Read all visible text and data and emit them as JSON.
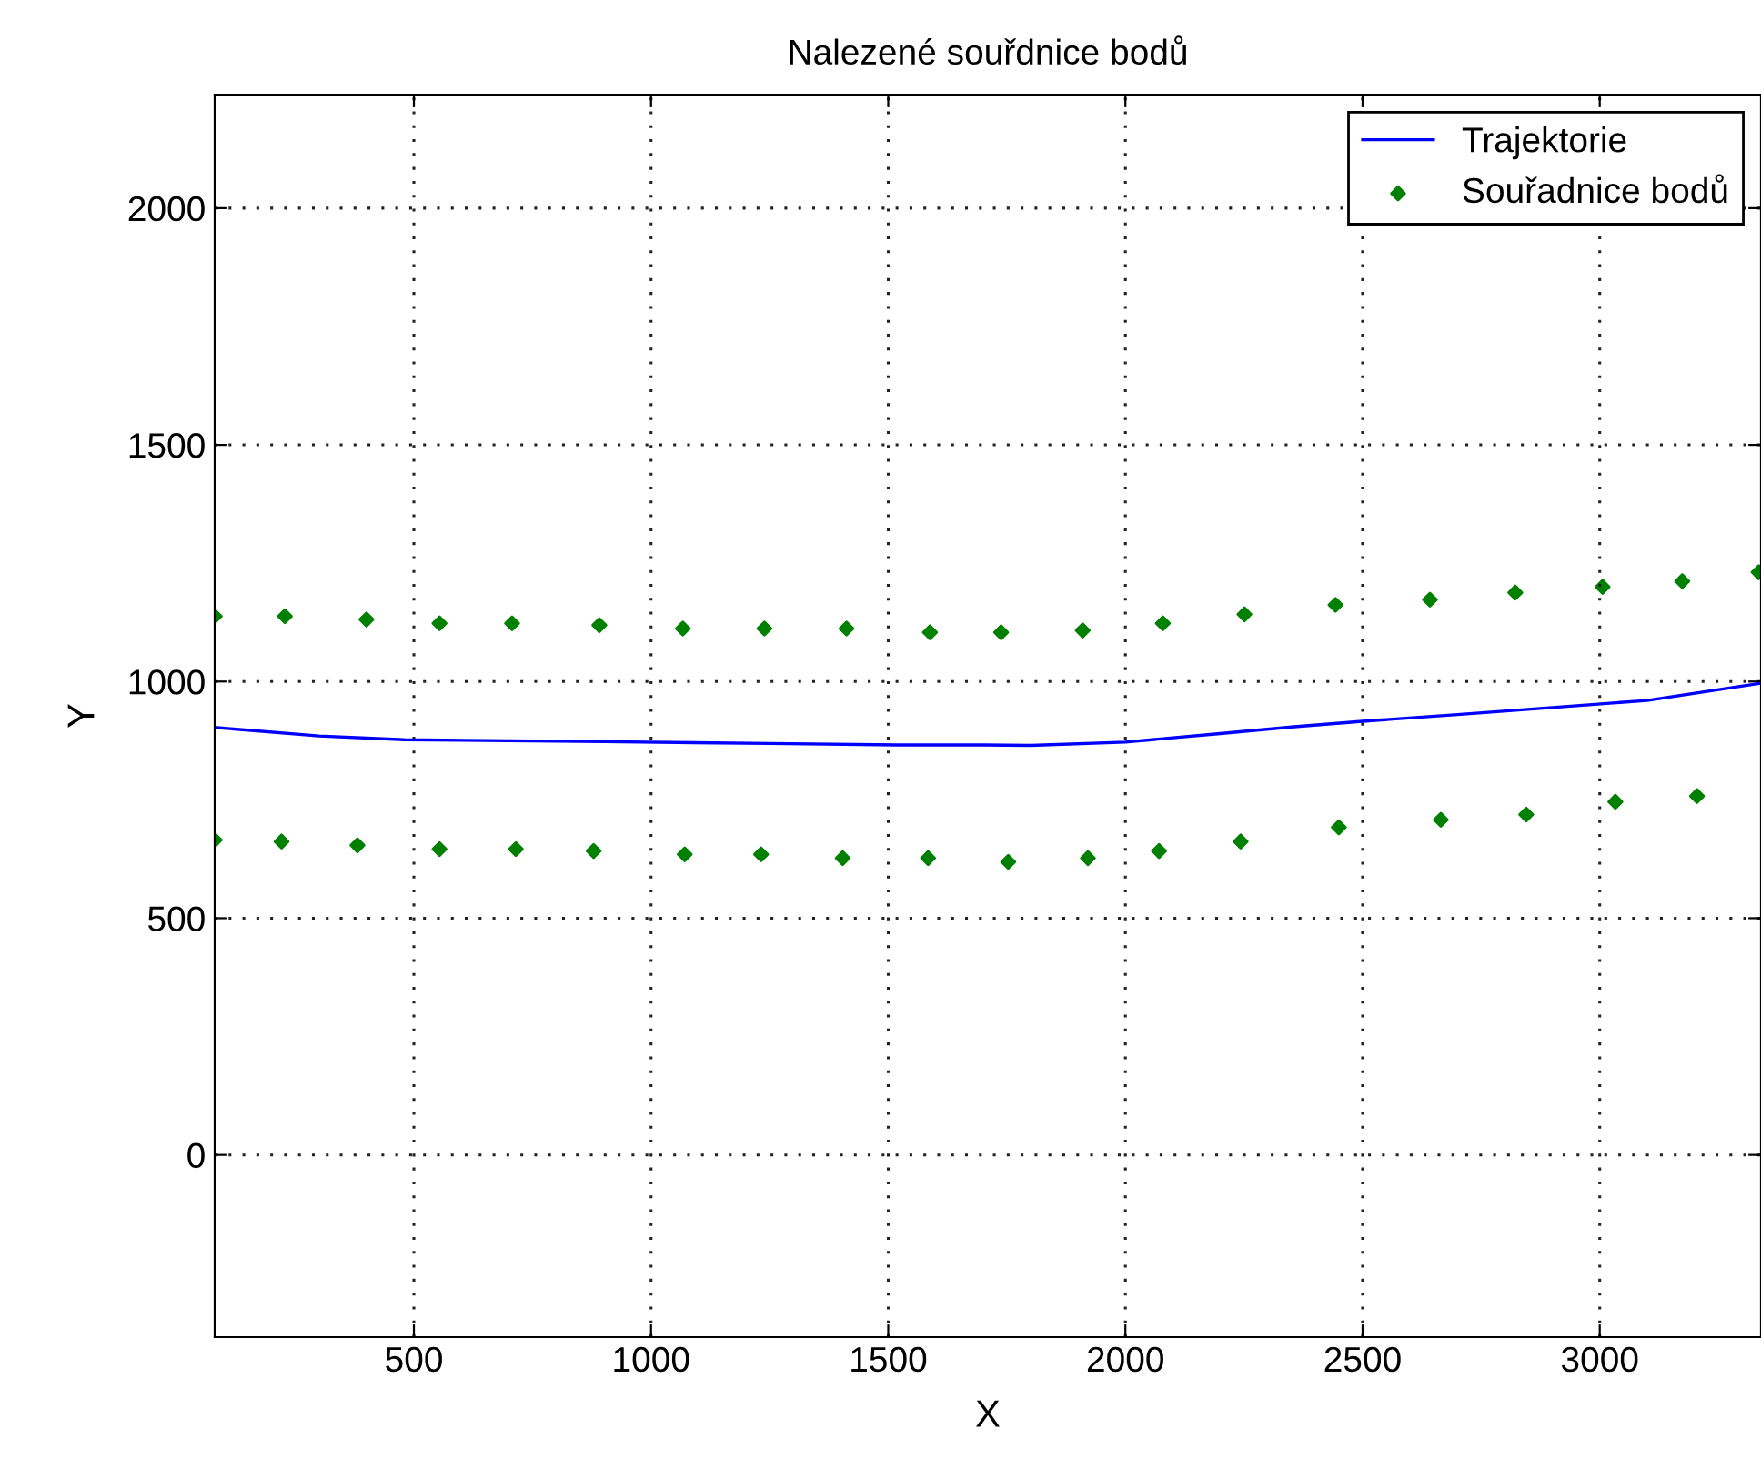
{
  "chart_data": {
    "type": "line",
    "title": "Nalezené souřdnice bodů",
    "xlabel": "X",
    "ylabel": "Y",
    "xlim": [
      80,
      3340
    ],
    "ylim": [
      -385,
      2240
    ],
    "xticks": [
      500,
      1000,
      1500,
      2000,
      2500,
      3000
    ],
    "yticks": [
      0,
      500,
      1000,
      1500,
      2000
    ],
    "grid": true,
    "legend": "top right",
    "series": [
      {
        "name": "Trajektorie",
        "color": "#0000ff",
        "line_style": "solid",
        "marker": "none",
        "x": [
          80,
          300,
          480,
          900,
          1250,
          1520,
          1700,
          1800,
          2000,
          2100,
          2200,
          2350,
          2500,
          2700,
          2900,
          3100,
          3337
        ],
        "values": [
          903,
          885,
          877,
          873,
          869,
          866,
          866,
          865,
          872,
          881,
          890,
          904,
          916,
          930,
          945,
          960,
          996
        ]
      },
      {
        "name": "Souřadnice bodů",
        "type": "scatter",
        "color": "#008000",
        "marker": "diamond",
        "x": [
          80,
          228,
          400,
          554,
          707,
          891,
          1067,
          1239,
          1412,
          1588,
          1738,
          1910,
          2079,
          2251,
          2443,
          2642,
          2822,
          3006,
          3174,
          3335,
          80,
          221,
          381,
          554,
          715,
          879,
          1071,
          1232,
          1404,
          1584,
          1753,
          1921,
          2071,
          2243,
          2450,
          2665,
          2845,
          3033,
          3205
        ],
        "values": [
          1138,
          1138,
          1131,
          1123,
          1123,
          1119,
          1112,
          1112,
          1112,
          1104,
          1104,
          1108,
          1123,
          1142,
          1162,
          1173,
          1188,
          1200,
          1212,
          1231,
          665,
          662,
          654,
          646,
          646,
          642,
          635,
          635,
          627,
          627,
          619,
          627,
          642,
          662,
          692,
          708,
          719,
          746,
          758
        ]
      }
    ]
  }
}
